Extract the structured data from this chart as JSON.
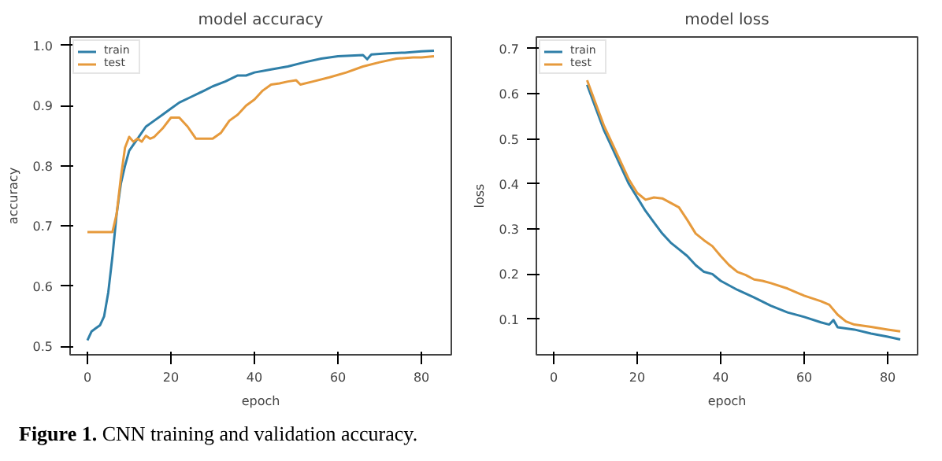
{
  "chart_data": [
    {
      "type": "line",
      "title": "model accuracy",
      "xlabel": "epoch",
      "ylabel": "accuracy",
      "xlim": [
        -4.15,
        87.15
      ],
      "ylim": [
        0.486,
        1.014
      ],
      "xticks": [
        0,
        20,
        40,
        60,
        80
      ],
      "yticks": [
        0.5,
        0.6,
        0.7,
        0.8,
        0.9,
        {
          "value": 1,
          "label": "1.0"
        }
      ],
      "grid": false,
      "legend": "top left",
      "line_style": "solid",
      "marker": "none",
      "annotations": [
        "Figure 1. CNN training and validation accuracy."
      ],
      "series": [
        {
          "name": "train",
          "color": "#2f7fa8",
          "x": [
            0,
            1,
            2,
            3,
            4,
            5,
            6,
            7,
            8,
            9,
            10,
            12,
            14,
            16,
            18,
            20,
            22,
            25,
            28,
            30,
            33,
            36,
            38,
            40,
            44,
            48,
            52,
            56,
            60,
            66,
            67,
            68,
            72,
            76,
            80,
            83
          ],
          "values": [
            0.51,
            0.525,
            0.53,
            0.535,
            0.55,
            0.59,
            0.65,
            0.72,
            0.77,
            0.8,
            0.825,
            0.845,
            0.865,
            0.875,
            0.885,
            0.895,
            0.905,
            0.915,
            0.925,
            0.932,
            0.94,
            0.95,
            0.95,
            0.955,
            0.96,
            0.965,
            0.972,
            0.978,
            0.982,
            0.984,
            0.977,
            0.985,
            0.987,
            0.988,
            0.99,
            0.991
          ]
        },
        {
          "name": "test",
          "color": "#e69a3c",
          "x": [
            0,
            6,
            7,
            8,
            9,
            10,
            11,
            12,
            13,
            14,
            15,
            16,
            18,
            20,
            22,
            24,
            26,
            28,
            30,
            32,
            34,
            36,
            38,
            40,
            42,
            44,
            46,
            48,
            50,
            51,
            54,
            58,
            62,
            66,
            70,
            74,
            78,
            80,
            83
          ],
          "values": [
            0.69,
            0.69,
            0.72,
            0.78,
            0.83,
            0.848,
            0.84,
            0.845,
            0.84,
            0.85,
            0.845,
            0.848,
            0.862,
            0.88,
            0.88,
            0.865,
            0.845,
            0.845,
            0.845,
            0.855,
            0.875,
            0.885,
            0.9,
            0.91,
            0.925,
            0.935,
            0.937,
            0.94,
            0.942,
            0.935,
            0.94,
            0.947,
            0.955,
            0.965,
            0.972,
            0.978,
            0.98,
            0.98,
            0.982
          ]
        }
      ]
    },
    {
      "type": "line",
      "title": "model loss",
      "xlabel": "epoch",
      "ylabel": "loss",
      "xlim": [
        -4.15,
        87.15
      ],
      "ylim": [
        0.021,
        0.726
      ],
      "xticks": [
        0,
        20,
        40,
        60,
        80
      ],
      "yticks": [
        0.1,
        0.2,
        0.3,
        0.4,
        0.5,
        0.6,
        0.7
      ],
      "grid": false,
      "legend": "top left",
      "line_style": "solid",
      "marker": "none",
      "series": [
        {
          "name": "train",
          "color": "#2f7fa8",
          "x": [
            8,
            10,
            12,
            14,
            16,
            18,
            20,
            22,
            24,
            26,
            28,
            30,
            32,
            34,
            36,
            38,
            40,
            44,
            48,
            52,
            56,
            60,
            64,
            66,
            67,
            68,
            72,
            76,
            80,
            83
          ],
          "values": [
            0.62,
            0.57,
            0.52,
            0.48,
            0.44,
            0.4,
            0.37,
            0.34,
            0.315,
            0.29,
            0.27,
            0.255,
            0.24,
            0.22,
            0.205,
            0.2,
            0.185,
            0.165,
            0.148,
            0.13,
            0.115,
            0.105,
            0.093,
            0.088,
            0.098,
            0.082,
            0.077,
            0.068,
            0.061,
            0.055
          ]
        },
        {
          "name": "test",
          "color": "#e69a3c",
          "x": [
            8,
            10,
            12,
            14,
            16,
            18,
            20,
            22,
            24,
            26,
            28,
            30,
            32,
            34,
            36,
            38,
            40,
            42,
            44,
            46,
            48,
            50,
            52,
            56,
            60,
            64,
            66,
            68,
            70,
            72,
            76,
            80,
            83
          ],
          "values": [
            0.63,
            0.58,
            0.53,
            0.49,
            0.45,
            0.41,
            0.38,
            0.365,
            0.37,
            0.368,
            0.358,
            0.348,
            0.32,
            0.29,
            0.275,
            0.262,
            0.24,
            0.22,
            0.205,
            0.198,
            0.188,
            0.185,
            0.18,
            0.168,
            0.152,
            0.14,
            0.132,
            0.11,
            0.095,
            0.088,
            0.083,
            0.077,
            0.073
          ]
        }
      ]
    }
  ]
}
